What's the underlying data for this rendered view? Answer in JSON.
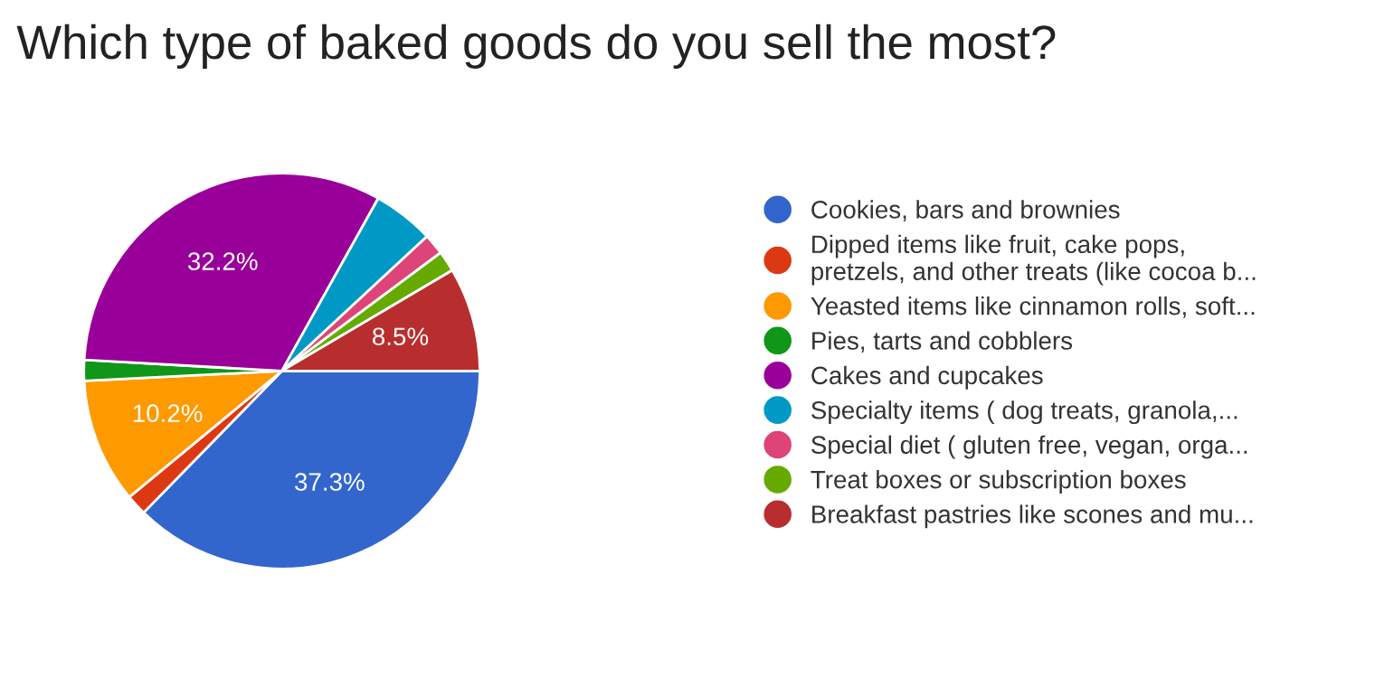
{
  "chart_data": {
    "type": "pie",
    "title": "Which type of baked goods do you sell the most?",
    "categories": [
      "Cookies, bars and brownies",
      "Dipped items like fruit, cake pops,\npretzels, and other treats (like cocoa b...",
      "Yeasted items like cinnamon rolls, soft...",
      "Pies, tarts and cobblers",
      "Cakes and cupcakes",
      "Specialty items ( dog treats, granola,...",
      "Special diet ( gluten free, vegan, orga...",
      "Treat boxes or subscription boxes",
      "Breakfast pastries like scones and mu..."
    ],
    "values": [
      37.3,
      1.7,
      10.2,
      1.7,
      32.2,
      5.0,
      1.7,
      1.7,
      8.5
    ],
    "value_labels": [
      "37.3%",
      null,
      "10.2%",
      null,
      "32.2%",
      null,
      null,
      null,
      "8.5%"
    ],
    "colors": [
      "#3366cc",
      "#dc3912",
      "#ff9900",
      "#109618",
      "#990099",
      "#0099c6",
      "#dd4477",
      "#66aa00",
      "#b82e2e"
    ],
    "legend": "right"
  }
}
